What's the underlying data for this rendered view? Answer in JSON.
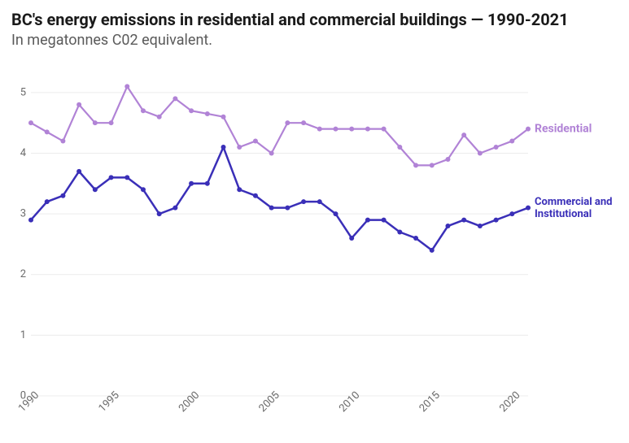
{
  "header": {
    "title": "BC's energy emissions in residential and commercial buildings — 1990-2021",
    "subtitle": "In megatonnes C02 equivalent.",
    "title_fontsize": 20,
    "title_color": "#1a1a1a",
    "subtitle_fontsize": 18,
    "subtitle_color": "#5a5a5a"
  },
  "chart": {
    "type": "line",
    "background_color": "#ffffff",
    "grid_color": "#ececec",
    "grid_width": 1,
    "axis_font_size": 13,
    "axis_text_color": "#6b6b6b",
    "x": {
      "years": [
        1990,
        1991,
        1992,
        1993,
        1994,
        1995,
        1996,
        1997,
        1998,
        1999,
        2000,
        2001,
        2002,
        2003,
        2004,
        2005,
        2006,
        2007,
        2008,
        2009,
        2010,
        2011,
        2012,
        2013,
        2014,
        2015,
        2016,
        2017,
        2018,
        2019,
        2020,
        2021
      ],
      "ticks": [
        1990,
        1995,
        2000,
        2005,
        2010,
        2015,
        2020
      ],
      "tick_rotate": -45
    },
    "y": {
      "min": 0,
      "max": 5.4,
      "ticks": [
        0,
        1,
        2,
        3,
        4,
        5
      ]
    },
    "series": [
      {
        "id": "residential",
        "label": "Residential",
        "color": "#b183d6",
        "line_width": 2.2,
        "marker_radius": 3,
        "label_fontsize": 14,
        "data": [
          4.5,
          4.35,
          4.2,
          4.8,
          4.5,
          4.5,
          5.1,
          4.7,
          4.6,
          4.9,
          4.7,
          4.65,
          4.6,
          4.1,
          4.2,
          4.0,
          4.5,
          4.5,
          4.4,
          4.4,
          4.4,
          4.4,
          4.4,
          4.1,
          3.8,
          3.8,
          3.9,
          4.3,
          4.0,
          4.1,
          4.2,
          4.4
        ]
      },
      {
        "id": "commercial",
        "label": "Commercial and Institutional",
        "color": "#3a2fb8",
        "line_width": 2.5,
        "marker_radius": 3,
        "label_fontsize": 13,
        "data": [
          2.9,
          3.2,
          3.3,
          3.7,
          3.4,
          3.6,
          3.6,
          3.4,
          3.0,
          3.1,
          3.5,
          3.5,
          4.1,
          3.4,
          3.3,
          3.1,
          3.1,
          3.2,
          3.2,
          3.0,
          2.6,
          2.9,
          2.9,
          2.7,
          2.6,
          2.4,
          2.8,
          2.9,
          2.8,
          2.9,
          3.0,
          3.1
        ]
      }
    ]
  }
}
